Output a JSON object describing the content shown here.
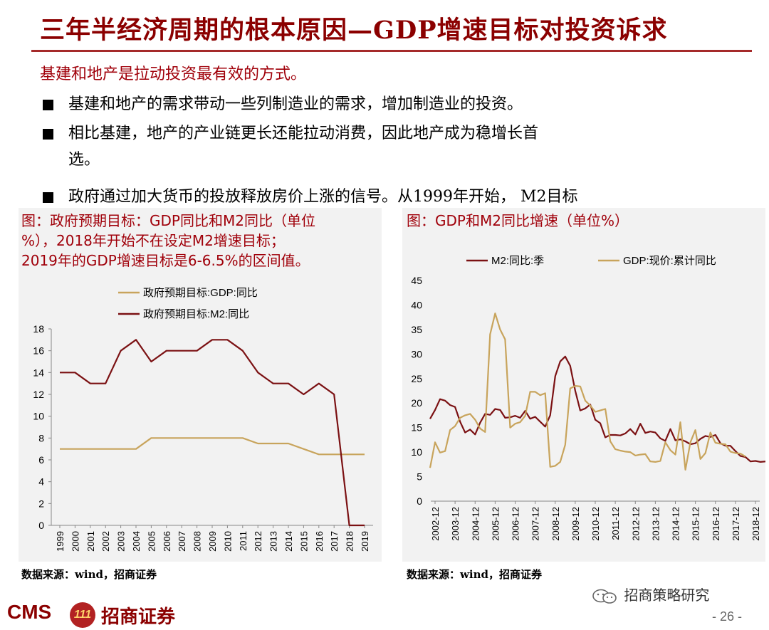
{
  "slide": {
    "title": "三年半经济周期的根本原因—GDP增速目标对投资诉求",
    "subtitle": "基建和地产是拉动投资最有效的方式。",
    "bullets": [
      "基建和地产的需求带动一些列制造业的需求，增加制造业的投资。",
      "相比基建，地产的产业链更长还能拉动消费，因此地产成为稳增长首选。",
      "政府通过加大货币的投放释放房价上涨的信号。从1999年开始， M2目标"
    ],
    "bullet2_line1": "相比基建，地产的产业链更长还能拉动消费，因此地产成为稳增长首",
    "bullet2_line2": "选。",
    "page_number": "- 26 -",
    "wechat_label": "招商策略研究",
    "brand_en": "CMS",
    "brand_cn": "招商证券",
    "brand_mark": "111"
  },
  "left_figure": {
    "title_line1": "图：政府预期目标：GDP同比和M2同比（单位",
    "title_line2": "%），2018年开始不在设定M2增速目标；",
    "title_line3": "2019年的GDP增速目标是6-6.5%的区间值。",
    "source": "数据来源：wind，招商证券"
  },
  "right_figure": {
    "title": "图：GDP和M2同比增速（单位%）",
    "source": "数据来源：wind，招商证券"
  },
  "chart_data": [
    {
      "type": "line",
      "x": [
        "1999",
        "2000",
        "2001",
        "2002",
        "2003",
        "2004",
        "2005",
        "2006",
        "2007",
        "2008",
        "2009",
        "2010",
        "2011",
        "2012",
        "2013",
        "2014",
        "2015",
        "2016",
        "2017",
        "2018",
        "2019"
      ],
      "series": [
        {
          "name": "政府预期目标:GDP:同比",
          "color": "#C8A45C",
          "values": [
            7,
            7,
            7,
            7,
            7,
            7,
            8,
            8,
            8,
            8,
            8,
            8,
            8,
            7.5,
            7.5,
            7.5,
            7,
            6.5,
            6.5,
            6.5,
            6.5
          ]
        },
        {
          "name": "政府预期目标:M2:同比",
          "color": "#7B1113",
          "values": [
            14,
            14,
            13,
            13,
            16,
            17,
            15,
            16,
            16,
            16,
            17,
            17,
            16,
            14,
            13,
            13,
            12,
            13,
            12,
            0,
            0
          ]
        }
      ],
      "ylim": [
        0,
        18
      ],
      "yticks": [
        "0",
        "2",
        "4",
        "6",
        "8",
        "10",
        "12",
        "14",
        "16",
        "18"
      ],
      "legend": "top-left",
      "grid": false
    },
    {
      "type": "line",
      "xticks": [
        "2002-12",
        "2003-12",
        "2004-12",
        "2005-12",
        "2006-12",
        "2007-12",
        "2008-12",
        "2009-12",
        "2010-12",
        "2011-12",
        "2012-12",
        "2013-12",
        "2014-12",
        "2015-12",
        "2016-12",
        "2017-12",
        "2018-12"
      ],
      "series": [
        {
          "name": "M2:同比:季",
          "color": "#7B1113",
          "values": [
            16.8,
            18.6,
            20.8,
            20.5,
            19.6,
            19.2,
            16.2,
            14.0,
            14.6,
            13.6,
            16.0,
            17.8,
            17.6,
            18.8,
            18.6,
            17.0,
            17.1,
            17.4,
            17.0,
            18.4,
            16.8,
            17.2,
            16.2,
            15.2,
            17.5,
            25.5,
            28.5,
            29.5,
            27.6,
            22.5,
            18.5,
            18.9,
            19.7,
            16.6,
            15.9,
            13.0,
            13.5,
            13.5,
            13.4,
            13.8,
            14.7,
            13.6,
            15.8,
            13.9,
            14.2,
            14.0,
            12.8,
            12.3,
            14.7,
            12.4,
            12.6,
            12.2,
            11.6,
            11.8,
            12.7,
            13.3,
            13.1,
            13.5,
            11.8,
            11.3,
            11.3,
            10.2,
            9.2,
            9.0,
            8.1,
            8.2,
            8.0,
            8.1,
            8.3,
            8.0
          ],
          "start": "2002-09"
        },
        {
          "name": "GDP:现价:累计同比",
          "color": "#C8A45C",
          "values": [
            6.8,
            12.0,
            9.9,
            10.2,
            14.5,
            15.3,
            17.0,
            17.5,
            17.8,
            16.6,
            14.8,
            14.1,
            34.0,
            38.3,
            35.0,
            33.0,
            15.0,
            15.8,
            16.1,
            17.4,
            22.3,
            22.3,
            21.6,
            22.0,
            7.0,
            7.2,
            8.0,
            11.5,
            23.0,
            23.5,
            23.4,
            20.5,
            19.5,
            18.2,
            18.5,
            18.8,
            12.2,
            10.6,
            10.3,
            10.1,
            10.0,
            9.3,
            9.5,
            9.6,
            8.1,
            8.0,
            8.2,
            12.0,
            10.4,
            9.5,
            16.1,
            6.4,
            12.0,
            14.5,
            8.6,
            9.8,
            14.0,
            11.9,
            11.7,
            11.6,
            10.1,
            9.8,
            9.7,
            9.1
          ],
          "start": "2002-09"
        }
      ],
      "ylim": [
        0,
        45
      ],
      "yticks": [
        "0",
        "5",
        "10",
        "15",
        "20",
        "25",
        "30",
        "35",
        "40",
        "45"
      ],
      "legend": "top",
      "grid": false
    }
  ]
}
